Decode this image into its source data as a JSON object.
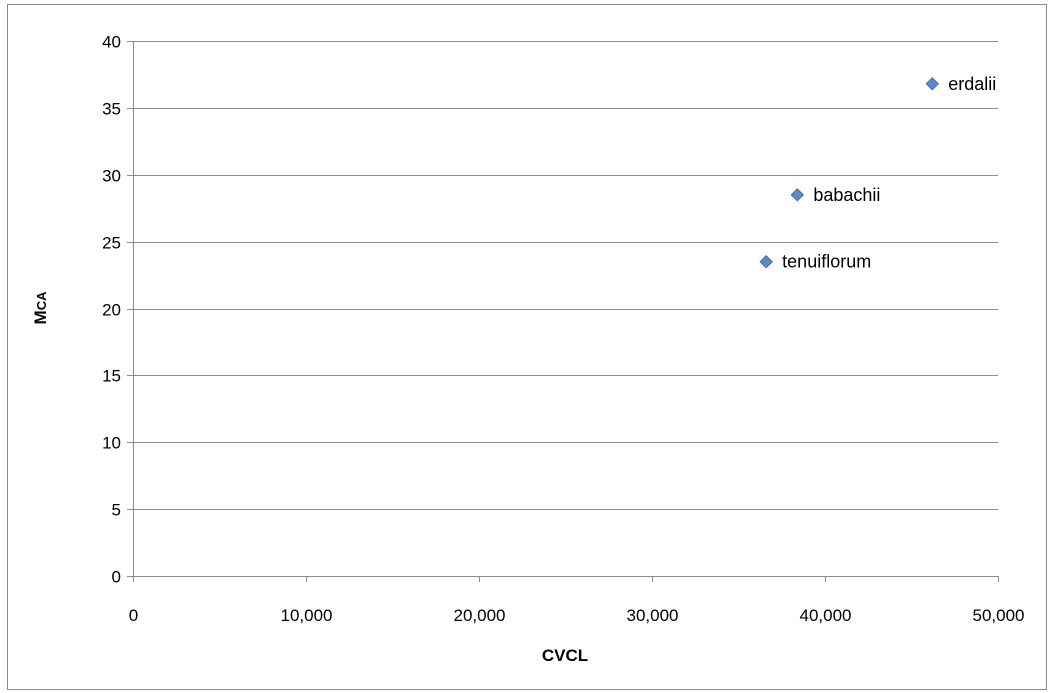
{
  "chart_data": {
    "type": "scatter",
    "title": "",
    "xlabel": "CVCL",
    "ylabel": {
      "main": "M",
      "sub": "CA"
    },
    "xlim": [
      0,
      50000
    ],
    "ylim": [
      0,
      40
    ],
    "xticks": [
      0,
      10000,
      20000,
      30000,
      40000,
      50000
    ],
    "xtick_labels": [
      "0",
      "10,000",
      "20,000",
      "30,000",
      "40,000",
      "50,000"
    ],
    "yticks": [
      0,
      5,
      10,
      15,
      20,
      25,
      30,
      35,
      40
    ],
    "ytick_labels": [
      "0",
      "5",
      "10",
      "15",
      "20",
      "25",
      "30",
      "35",
      "40"
    ],
    "grid": "horizontal",
    "legend": "none",
    "marker": "diamond",
    "marker_color": "#5b8ac6",
    "points": [
      {
        "label": "erdalii",
        "x": 46200,
        "y": 36.8
      },
      {
        "label": "babachii",
        "x": 38400,
        "y": 28.5
      },
      {
        "label": "tenuiflorum",
        "x": 36600,
        "y": 23.5
      }
    ]
  }
}
